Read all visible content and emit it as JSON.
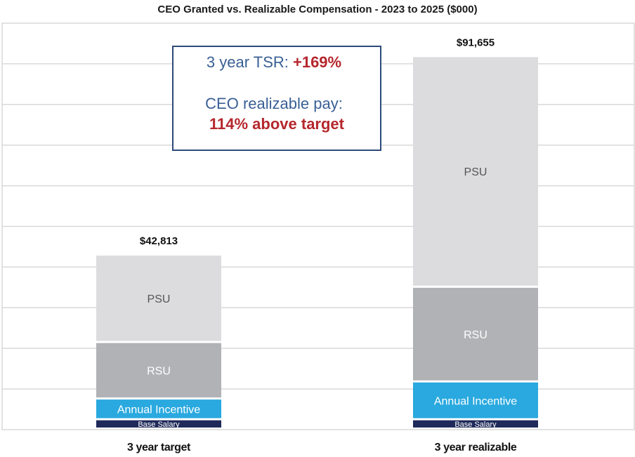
{
  "chart_data": {
    "type": "bar",
    "stacked": true,
    "title": "CEO Granted vs. Realizable Compensation - 2023 to 2025 ($000)",
    "categories": [
      "3 year target",
      "3 year realizable"
    ],
    "ylim": [
      0,
      100000
    ],
    "grid": true,
    "legend": "none",
    "totals": [
      "$42,813",
      "$91,655"
    ],
    "series": [
      {
        "name": "Base Salary",
        "color": "#1f2a5a",
        "text_color": "#ffffff",
        "values": [
          2300,
          2300
        ]
      },
      {
        "name": "Annual Incentive",
        "color": "#29a9df",
        "text_color": "#ffffff",
        "values": [
          5100,
          9300
        ]
      },
      {
        "name": "RSU",
        "color": "#b1b2b5",
        "text_color": "#ffffff",
        "values": [
          13900,
          23300
        ]
      },
      {
        "name": "PSU",
        "color": "#dcdcde",
        "text_color": "#555555",
        "values": [
          21513,
          56755
        ]
      }
    ],
    "annotations": {
      "tsr_label": "3 year TSR: ",
      "tsr_value": "+169%",
      "pay_label": "CEO realizable pay:",
      "pay_value": "114% above target"
    }
  }
}
